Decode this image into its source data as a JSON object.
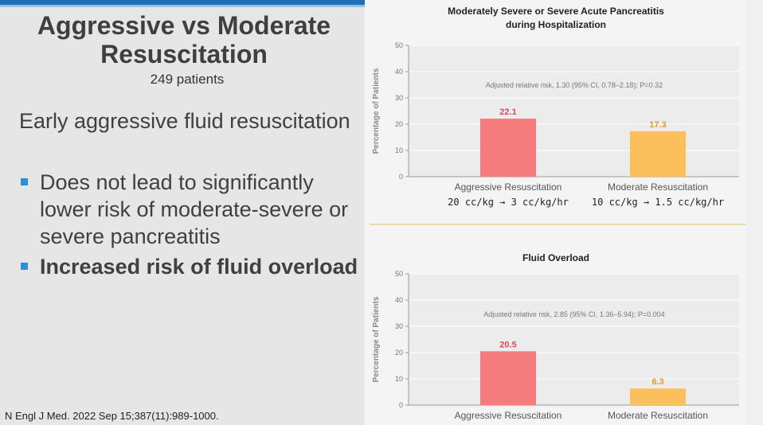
{
  "slide": {
    "title": "Aggressive vs Moderate Resuscitation",
    "subtitle": "249 patients",
    "lead": "Early aggressive fluid resuscitation",
    "bullets": [
      "Does not lead to significantly lower risk of moderate-severe or severe pancreatitis",
      "Increased risk of fluid overload"
    ],
    "citation": "N Engl J Med. 2022 Sep 15;387(11):989-1000."
  },
  "colors": {
    "aggressive": "#f47c7c",
    "moderate": "#fbbf5c",
    "bullet": "#2c8fd8",
    "accent_bar": "#1f6fb8"
  },
  "chart_data": [
    {
      "type": "bar",
      "title_line1": "Moderately Severe or Severe Acute Pancreatitis",
      "title_line2": "during Hospitalization",
      "ylabel": "Percentage of Patients",
      "ylim": [
        0,
        50
      ],
      "yticks": [
        0,
        10,
        20,
        30,
        40,
        50
      ],
      "annotation": "Adjusted relative risk, 1.30 (95% CI, 0.78–2.18); P=0.32",
      "categories": [
        "Aggressive Resuscitation",
        "Moderate Resuscitation"
      ],
      "category_subtitles": [
        "20 cc/kg → 3 cc/kg/hr",
        "10 cc/kg → 1.5 cc/kg/hr"
      ],
      "values": [
        22.1,
        17.3
      ],
      "value_labels": [
        "22.1",
        "17.3"
      ]
    },
    {
      "type": "bar",
      "title_line1": "Fluid Overload",
      "title_line2": "",
      "ylabel": "Percentage of Patients",
      "ylim": [
        0,
        50
      ],
      "yticks": [
        0,
        10,
        20,
        30,
        40,
        50
      ],
      "annotation": "Adjusted relative risk, 2.85 (95% CI, 1.36–5.94); P=0.004",
      "categories": [
        "Aggressive Resuscitation",
        "Moderate Resuscitation"
      ],
      "category_subtitles": [
        "",
        ""
      ],
      "values": [
        20.5,
        6.3
      ],
      "value_labels": [
        "20.5",
        "6.3"
      ]
    }
  ]
}
